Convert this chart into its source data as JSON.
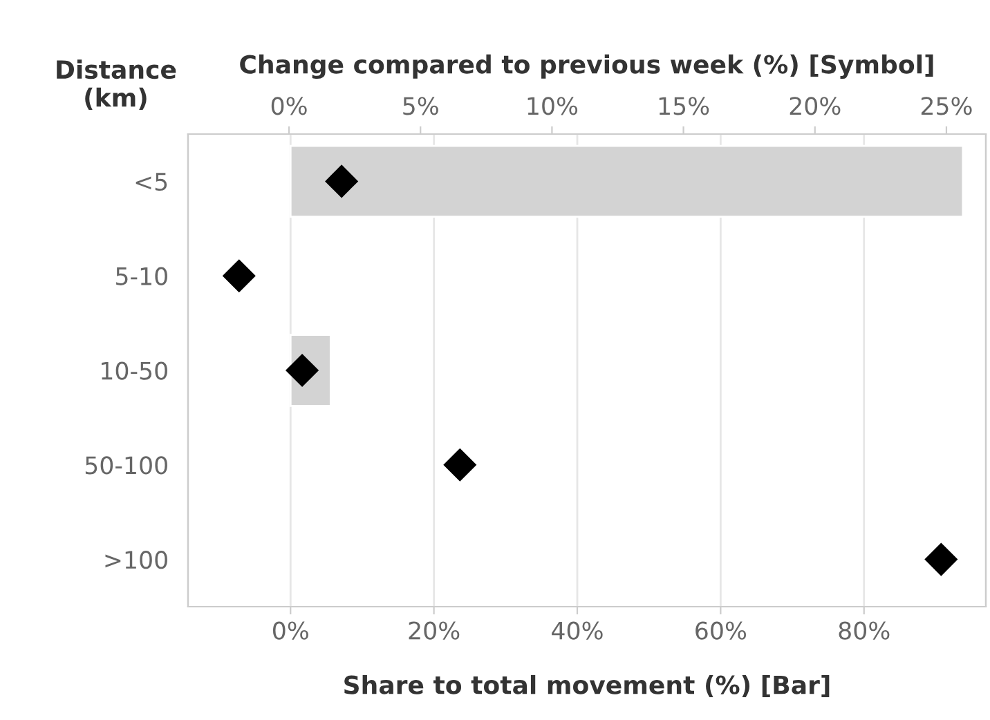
{
  "chart_data": {
    "type": "bar",
    "orientation": "horizontal",
    "categories": [
      "<5",
      "5-10",
      "10-50",
      "50-100",
      ">100"
    ],
    "series": [
      {
        "color": "#d3d3d3",
        "values": [
          93.8,
          null,
          5.6,
          null,
          null
        ]
      },
      {
        "type": "scatter",
        "axis": "x2",
        "color": "#000000",
        "marker": "diamond",
        "values": [
          2.0,
          -1.9,
          0.5,
          6.5,
          24.8
        ]
      }
    ],
    "xlabel": "Share to total movement (%) [Bar]",
    "x2label": "Change compared to previous week (%) [Symbol]",
    "ylabel": "Distance\n(km)",
    "xlim": [
      -14.3,
      97
    ],
    "xticks": [
      {
        "value": 0,
        "label": "0%"
      },
      {
        "value": 20,
        "label": "20%"
      },
      {
        "value": 40,
        "label": "40%"
      },
      {
        "value": 60,
        "label": "60%"
      },
      {
        "value": 80,
        "label": "80%"
      }
    ],
    "x2lim": [
      -3.84,
      26.5
    ],
    "x2ticks": [
      {
        "value": 0,
        "label": "0%"
      },
      {
        "value": 5,
        "label": "5%"
      },
      {
        "value": 10,
        "label": "10%"
      },
      {
        "value": 15,
        "label": "15%"
      },
      {
        "value": 20,
        "label": "20%"
      },
      {
        "value": 25,
        "label": "25%"
      }
    ],
    "grid": "x"
  }
}
